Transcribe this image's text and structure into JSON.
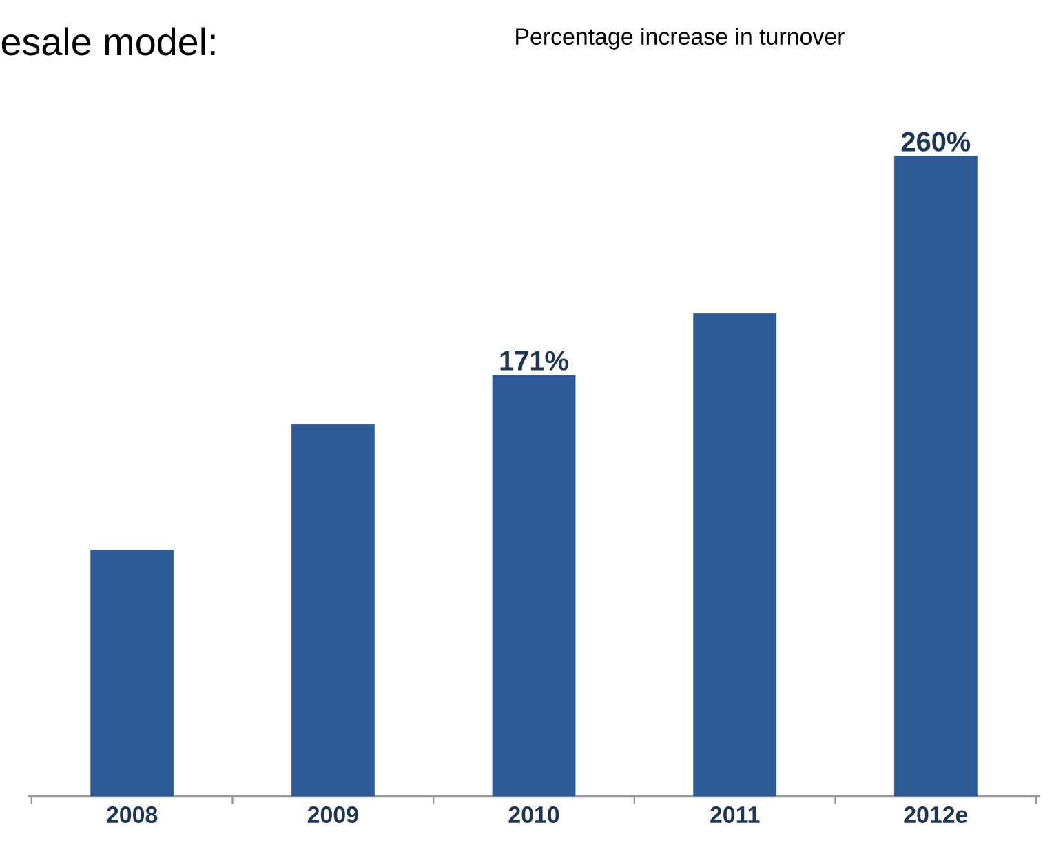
{
  "chart_data": {
    "type": "bar",
    "title": "esale model:",
    "subtitle": "Percentage increase in turnover",
    "categories": [
      "2008",
      "2009",
      "2010",
      "2011",
      "2012e"
    ],
    "values": [
      100,
      151,
      171,
      196,
      260
    ],
    "value_labels": [
      null,
      null,
      "171%",
      null,
      "260%"
    ],
    "color": "#2e5b96"
  }
}
